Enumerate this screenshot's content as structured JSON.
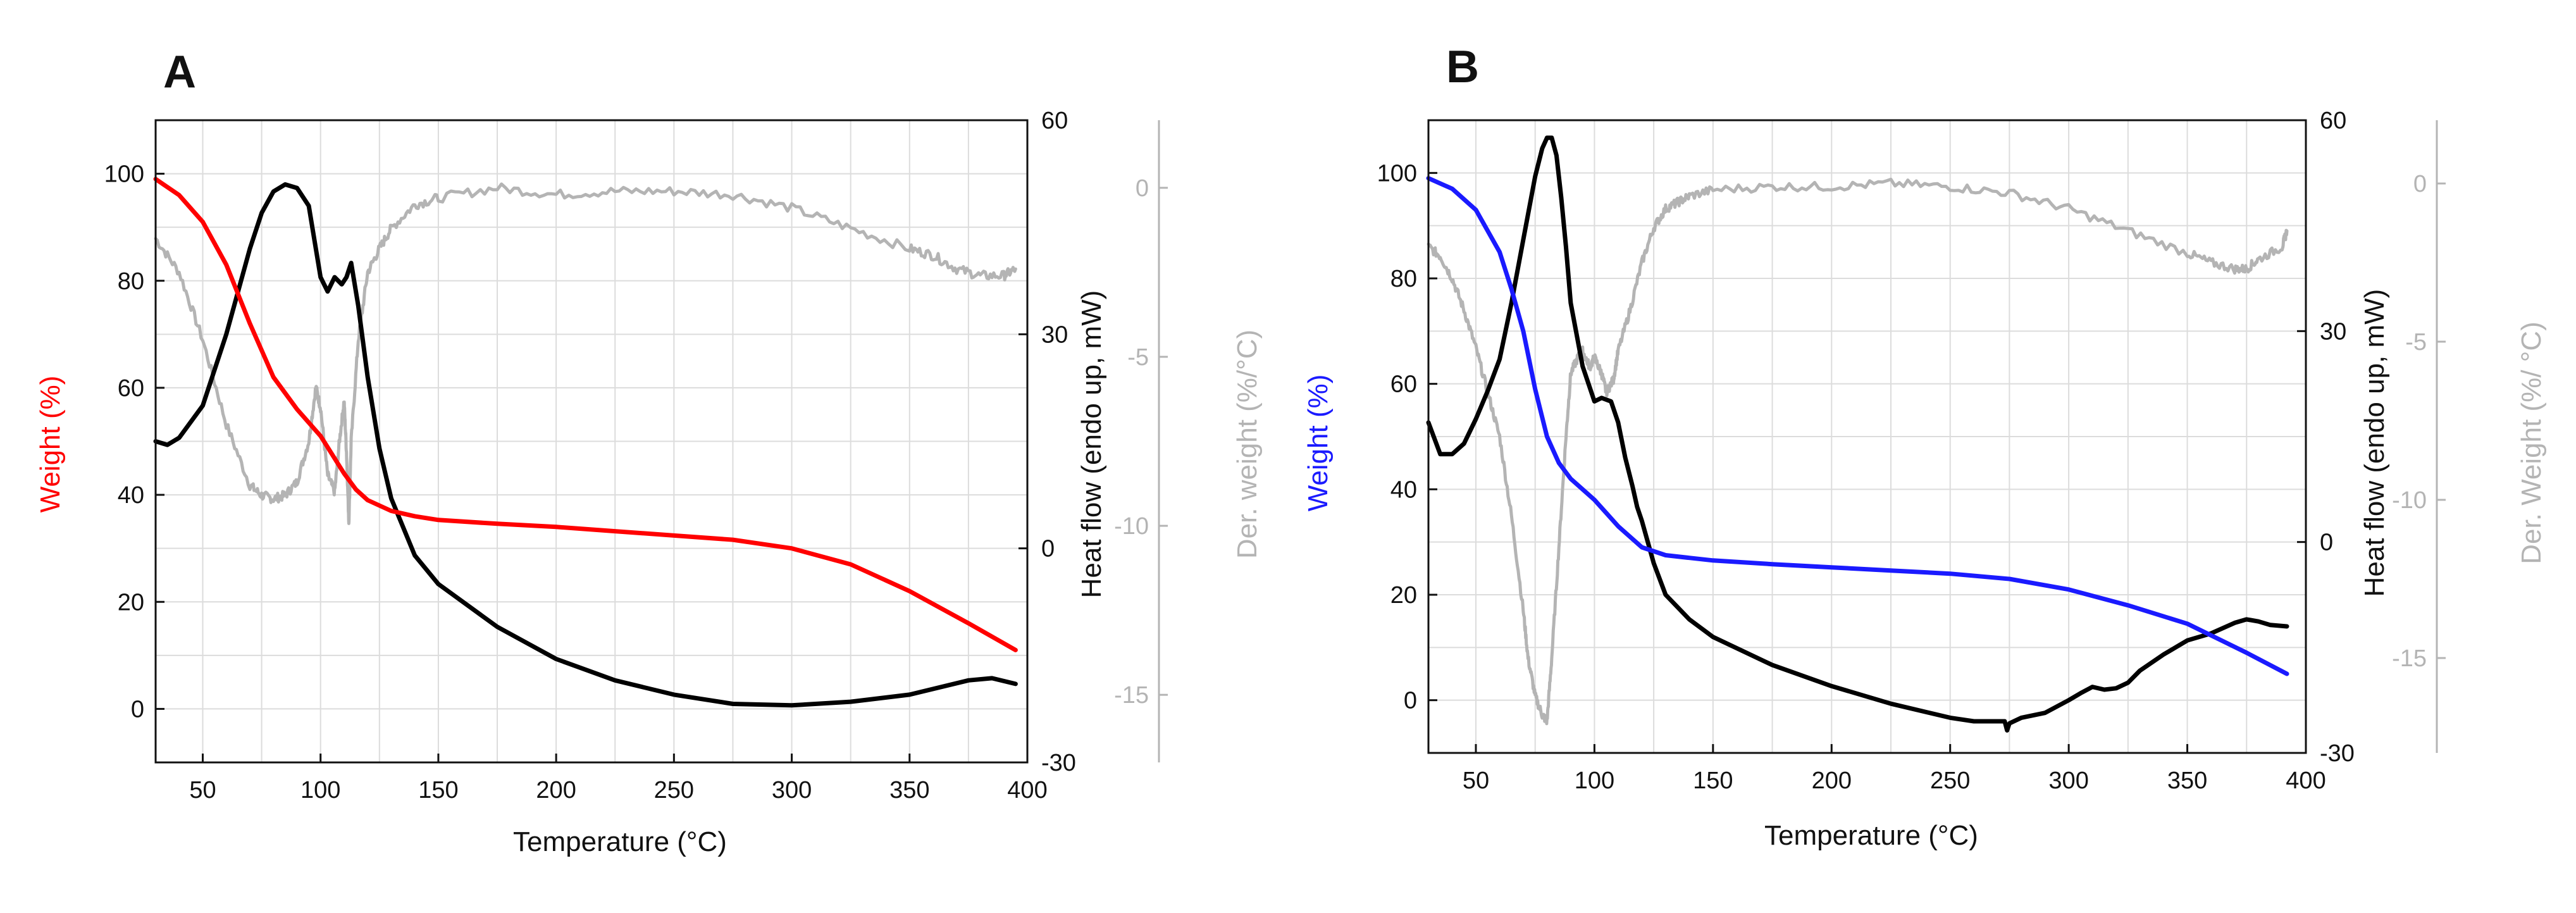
{
  "figure": {
    "panels": [
      "A",
      "B"
    ]
  },
  "chart_data": [
    {
      "panel_label": "A",
      "type": "line",
      "xlabel": "Temperature (°C)",
      "xlim": [
        30,
        400
      ],
      "xticks": [
        50,
        100,
        150,
        200,
        250,
        300,
        350,
        400
      ],
      "y_left": {
        "label": "Weight  (%)",
        "color": "#ff0000",
        "lim": [
          -10,
          110
        ],
        "ticks": [
          0,
          20,
          40,
          60,
          80,
          100
        ]
      },
      "y_right1": {
        "label": "Heat flow (endo up, mW)",
        "color": "#111111",
        "lim": [
          -30,
          60
        ],
        "ticks": [
          -30,
          0,
          30,
          60
        ]
      },
      "y_right2": {
        "label": "Der. weight (%/°C)",
        "color": "#b4b4b4",
        "lim": [
          -17,
          2
        ],
        "ticks": [
          -15,
          -10,
          -5,
          0
        ]
      },
      "grid": true,
      "series": [
        {
          "name": "Weight",
          "axis": "left",
          "color": "#ff0000",
          "x": [
            30,
            40,
            50,
            60,
            70,
            80,
            90,
            100,
            110,
            115,
            120,
            130,
            140,
            150,
            175,
            200,
            225,
            250,
            275,
            300,
            325,
            350,
            375,
            395
          ],
          "y": [
            99,
            96,
            91,
            83,
            72,
            62,
            56,
            51,
            44,
            41,
            39,
            37,
            36,
            35.3,
            34.6,
            34,
            33.2,
            32.4,
            31.6,
            30,
            27,
            22,
            16,
            11
          ]
        },
        {
          "name": "Heat flow",
          "axis": "right1",
          "color": "#000000",
          "x": [
            30,
            35,
            40,
            50,
            60,
            70,
            75,
            80,
            85,
            90,
            95,
            100,
            103,
            106,
            109,
            111,
            113,
            116,
            120,
            125,
            130,
            140,
            150,
            175,
            200,
            225,
            250,
            275,
            300,
            325,
            350,
            375,
            385,
            395
          ],
          "y": [
            15,
            14.5,
            15.5,
            20,
            30,
            42,
            47,
            50,
            51,
            50.5,
            48,
            38,
            36,
            38,
            37,
            38,
            40,
            34,
            24,
            14,
            7,
            -1,
            -5,
            -11,
            -15.5,
            -18.5,
            -20.5,
            -21.8,
            -22,
            -21.5,
            -20.5,
            -18.5,
            -18.2,
            -19
          ]
        },
        {
          "name": "Der. weight",
          "axis": "right2",
          "color": "#b4b4b4",
          "noisy": true,
          "x": [
            30,
            40,
            50,
            60,
            70,
            75,
            80,
            85,
            90,
            95,
            98,
            100,
            103,
            106,
            108,
            110,
            111,
            112,
            113,
            116,
            120,
            125,
            130,
            140,
            150,
            175,
            200,
            225,
            250,
            275,
            300,
            325,
            350,
            360,
            370,
            380,
            390,
            395
          ],
          "y": [
            -1.5,
            -2.5,
            -4.5,
            -7,
            -8.8,
            -9.1,
            -9.2,
            -9.1,
            -8.7,
            -7.5,
            -5.9,
            -6.5,
            -8.5,
            -9,
            -7.5,
            -6.3,
            -7.8,
            -9.9,
            -7.5,
            -4.5,
            -2.5,
            -1.8,
            -1.2,
            -0.5,
            -0.3,
            0,
            -0.2,
            -0.1,
            -0.1,
            -0.2,
            -0.6,
            -1.2,
            -1.8,
            -2,
            -2.4,
            -2.6,
            -2.6,
            -2.4
          ]
        }
      ]
    },
    {
      "panel_label": "B",
      "type": "line",
      "xlabel": "Temperature (°C)",
      "xlim": [
        30,
        400
      ],
      "xticks": [
        50,
        100,
        150,
        200,
        250,
        300,
        350,
        400
      ],
      "y_left": {
        "label": "Weight (%)",
        "color": "#1a1aff",
        "lim": [
          -10,
          110
        ],
        "ticks": [
          0,
          20,
          40,
          60,
          80,
          100
        ]
      },
      "y_right1": {
        "label": "Heat flow (endo up, mW)",
        "color": "#111111",
        "lim": [
          -30,
          60
        ],
        "ticks": [
          -30,
          0,
          30,
          60
        ]
      },
      "y_right2": {
        "label": "Der. Weight (%/ °C)",
        "color": "#b4b4b4",
        "lim": [
          -18,
          2
        ],
        "ticks": [
          -15,
          -10,
          -5,
          0
        ]
      },
      "grid": true,
      "series": [
        {
          "name": "Weight",
          "axis": "left",
          "color": "#1a1aff",
          "x": [
            30,
            40,
            50,
            60,
            65,
            70,
            75,
            80,
            85,
            90,
            100,
            110,
            120,
            130,
            140,
            150,
            175,
            200,
            225,
            250,
            275,
            300,
            325,
            350,
            375,
            392
          ],
          "y": [
            99,
            97,
            93,
            85,
            78,
            70,
            59,
            50,
            45,
            42,
            38,
            33,
            29,
            27.5,
            27,
            26.5,
            25.8,
            25.2,
            24.6,
            24,
            23,
            21,
            18,
            14.5,
            9,
            5
          ]
        },
        {
          "name": "Heat flow",
          "axis": "right1",
          "color": "#000000",
          "x": [
            30,
            35,
            40,
            45,
            50,
            55,
            60,
            65,
            70,
            75,
            78,
            80,
            82,
            84,
            86,
            88,
            90,
            95,
            100,
            103,
            107,
            110,
            113,
            116,
            118,
            120,
            125,
            130,
            140,
            150,
            175,
            200,
            225,
            250,
            260,
            270,
            273,
            274,
            275,
            280,
            290,
            300,
            305,
            310,
            315,
            320,
            325,
            330,
            340,
            350,
            360,
            370,
            375,
            380,
            385,
            392
          ],
          "y": [
            17,
            12.5,
            12.5,
            14,
            17.5,
            21.5,
            26,
            34,
            43,
            52,
            56,
            57.5,
            57.5,
            55,
            49,
            42,
            34,
            25,
            20,
            20.5,
            20,
            17,
            12,
            8,
            5,
            3,
            -3,
            -7.5,
            -11,
            -13.5,
            -17.5,
            -20.5,
            -23,
            -25,
            -25.5,
            -25.5,
            -25.5,
            -26.8,
            -25.8,
            -25,
            -24.3,
            -22.5,
            -21.5,
            -20.6,
            -21,
            -20.8,
            -20,
            -18.3,
            -16,
            -14,
            -13,
            -11.5,
            -11,
            -11.3,
            -11.8,
            -12
          ]
        },
        {
          "name": "Der. weight",
          "axis": "right2",
          "color": "#b4b4b4",
          "noisy": true,
          "x": [
            30,
            35,
            40,
            45,
            50,
            55,
            60,
            65,
            70,
            72,
            75,
            78,
            80,
            82,
            85,
            88,
            90,
            93,
            95,
            98,
            100,
            103,
            105,
            108,
            110,
            115,
            120,
            125,
            130,
            135,
            140,
            150,
            175,
            200,
            225,
            250,
            275,
            300,
            325,
            350,
            360,
            370,
            375,
            380,
            390,
            392
          ],
          "y": [
            -2,
            -2.3,
            -3,
            -4,
            -5.2,
            -6.6,
            -8,
            -10.5,
            -13.5,
            -15,
            -16.2,
            -16.8,
            -17,
            -15,
            -11.5,
            -8,
            -6,
            -5.5,
            -5.3,
            -5.8,
            -5.5,
            -6,
            -6.6,
            -6.2,
            -5.3,
            -4,
            -2.5,
            -1.4,
            -0.8,
            -0.6,
            -0.4,
            -0.2,
            -0.1,
            -0.1,
            0,
            -0.1,
            -0.3,
            -0.8,
            -1.5,
            -2.2,
            -2.5,
            -2.7,
            -2.7,
            -2.4,
            -2,
            -1.5
          ]
        }
      ]
    }
  ]
}
